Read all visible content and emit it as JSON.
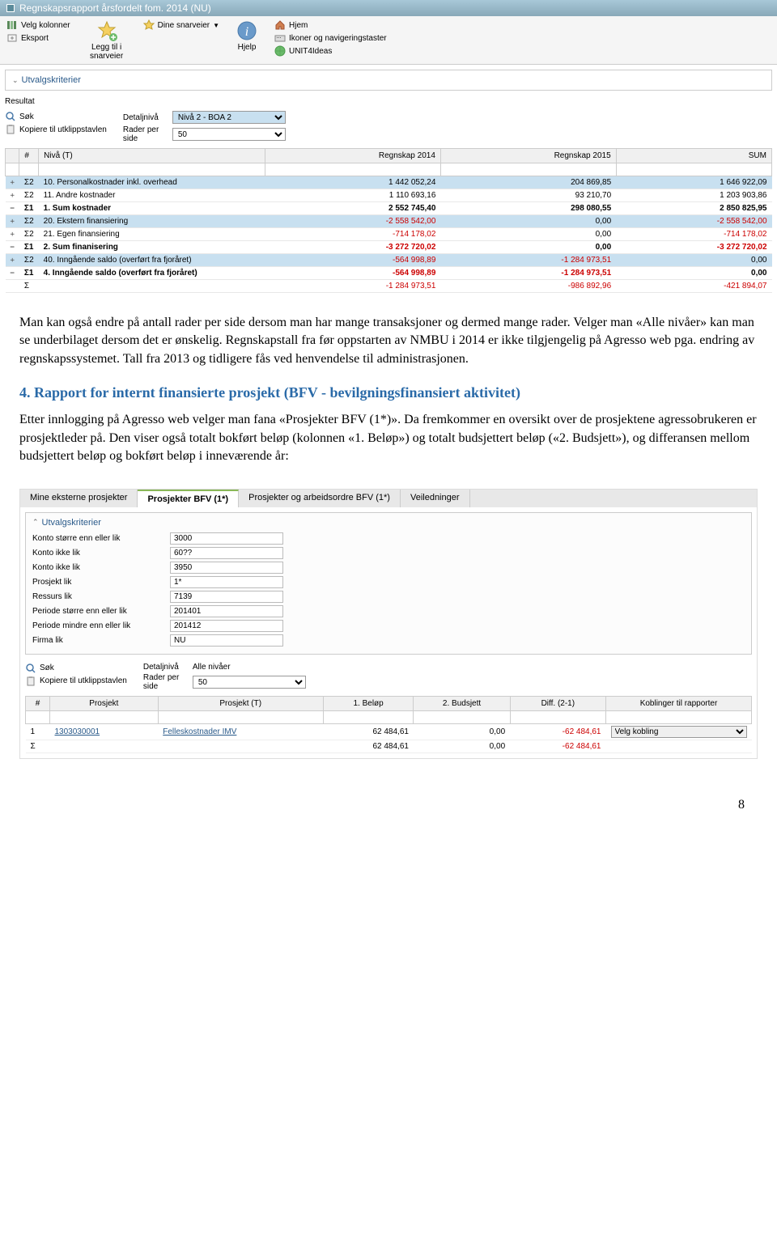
{
  "ss1": {
    "title": "Regnskapsrapport årsfordelt fom. 2014 (NU)",
    "toolbar": {
      "velg_kolonner": "Velg kolonner",
      "eksport": "Eksport",
      "legg_til": "Legg til i snarveier",
      "dine_snarveier": "Dine snarveier",
      "hjelp": "Hjelp",
      "hjem": "Hjem",
      "ikoner": "Ikoner og navigeringstaster",
      "unit4": "UNIT4Ideas"
    },
    "utvalgskriterier": "Utvalgskriterier",
    "resultat": "Resultat",
    "sok": "Søk",
    "kopiere": "Kopiere til utklippstavlen",
    "detaljniva_label": "Detaljnivå",
    "detaljniva_value": "Nivå 2 - BOA 2",
    "rader_label": "Rader per side",
    "rader_value": "50",
    "columns": [
      "#",
      "Nivå (T)",
      "Regnskap 2014",
      "Regnskap 2015",
      "SUM"
    ],
    "rows": [
      {
        "exp": "+",
        "sig": "Σ2",
        "label": "10. Personalkostnader inkl. overhead",
        "c1": "1 442 052,24",
        "c2": "204 869,85",
        "c3": "1 646 922,09",
        "bg": "blue"
      },
      {
        "exp": "+",
        "sig": "Σ2",
        "label": "11. Andre kostnader",
        "c1": "1 110 693,16",
        "c2": "93 210,70",
        "c3": "1 203 903,86",
        "bg": "white"
      },
      {
        "exp": "−",
        "sig": "Σ1",
        "label": "1. Sum kostnader",
        "c1": "2 552 745,40",
        "c2": "298 080,55",
        "c3": "2 850 825,95",
        "bg": "white",
        "bold": true
      },
      {
        "exp": "+",
        "sig": "Σ2",
        "label": "20. Ekstern finansiering",
        "c1": "-2 558 542,00",
        "c1neg": true,
        "c2": "0,00",
        "c3": "-2 558 542,00",
        "c3neg": true,
        "bg": "blue"
      },
      {
        "exp": "+",
        "sig": "Σ2",
        "label": "21. Egen finansiering",
        "c1": "-714 178,02",
        "c1neg": true,
        "c2": "0,00",
        "c3": "-714 178,02",
        "c3neg": true,
        "bg": "white"
      },
      {
        "exp": "−",
        "sig": "Σ1",
        "label": "2. Sum finanisering",
        "c1": "-3 272 720,02",
        "c1neg": true,
        "c2": "0,00",
        "c3": "-3 272 720,02",
        "c3neg": true,
        "bg": "white",
        "bold": true
      },
      {
        "exp": "+",
        "sig": "Σ2",
        "label": "40. Inngående saldo (overført fra fjoråret)",
        "c1": "-564 998,89",
        "c1neg": true,
        "c2": "-1 284 973,51",
        "c2neg": true,
        "c3": "0,00",
        "bg": "blue"
      },
      {
        "exp": "−",
        "sig": "Σ1",
        "label": "4. Inngående saldo (overført fra fjoråret)",
        "c1": "-564 998,89",
        "c1neg": true,
        "c2": "-1 284 973,51",
        "c2neg": true,
        "c3": "0,00",
        "bg": "white",
        "bold": true
      },
      {
        "exp": "",
        "sig": "Σ",
        "label": "",
        "c1": "-1 284 973,51",
        "c1neg": true,
        "c2": "-986 892,96",
        "c2neg": true,
        "c3": "-421 894,07",
        "c3neg": true,
        "bg": "white",
        "sum": true
      }
    ]
  },
  "doc": {
    "para1": "Man kan også endre på antall rader per side dersom man har mange transaksjoner og dermed mange rader. Velger man «Alle nivåer» kan man se underbilaget dersom det er ønskelig. Regnskapstall fra før oppstarten av NMBU i 2014 er ikke tilgjengelig på Agresso web pga. endring av regnskapssystemet. Tall fra 2013 og tidligere fås ved henvendelse til administrasjonen.",
    "heading": "4. Rapport for internt finansierte prosjekt (BFV - bevilgningsfinansiert aktivitet)",
    "para2": "Etter innlogging på Agresso web velger man fana «Prosjekter BFV (1*)». Da fremkommer en oversikt over de prosjektene agressobrukeren er prosjektleder på. Den viser også totalt bokført beløp (kolonnen «1. Beløp») og totalt budsjettert beløp («2. Budsjett»), og differansen mellom budsjettert beløp og bokført beløp i inneværende år:",
    "page_num": "8"
  },
  "ss2": {
    "tabs": [
      "Mine eksterne prosjekter",
      "Prosjekter BFV (1*)",
      "Prosjekter og arbeidsordre BFV (1*)",
      "Veiledninger"
    ],
    "active_tab": 1,
    "utvalgskriterier": "Utvalgskriterier",
    "criteria": [
      {
        "label": "Konto større enn eller lik",
        "value": "3000"
      },
      {
        "label": "Konto ikke lik",
        "value": "60??"
      },
      {
        "label": "Konto ikke lik",
        "value": "3950"
      },
      {
        "label": "Prosjekt lik",
        "value": "1*"
      },
      {
        "label": "Ressurs lik",
        "value": "7139"
      },
      {
        "label": "Periode større enn eller lik",
        "value": "201401"
      },
      {
        "label": "Periode mindre enn eller lik",
        "value": "201412"
      },
      {
        "label": "Firma lik",
        "value": "NU"
      }
    ],
    "sok": "Søk",
    "kopiere": "Kopiere til utklippstavlen",
    "detaljniva_label": "Detaljnivå",
    "detaljniva_value": "Alle nivåer",
    "rader_label": "Rader per side",
    "rader_value": "50",
    "columns": [
      "#",
      "Prosjekt",
      "Prosjekt (T)",
      "1. Beløp",
      "2. Budsjett",
      "Diff. (2-1)",
      "Koblinger til rapporter"
    ],
    "rows": [
      {
        "n": "1",
        "prosjekt": "1303030001",
        "prosjekt_t": "Felleskostnader IMV",
        "belop": "62 484,61",
        "budsjett": "0,00",
        "diff": "-62 484,61",
        "diffneg": true,
        "kobling": "Velg kobling"
      },
      {
        "n": "Σ",
        "prosjekt": "",
        "prosjekt_t": "",
        "belop": "62 484,61",
        "budsjett": "0,00",
        "diff": "-62 484,61",
        "diffneg": true,
        "kobling": "",
        "sum": true
      }
    ]
  }
}
